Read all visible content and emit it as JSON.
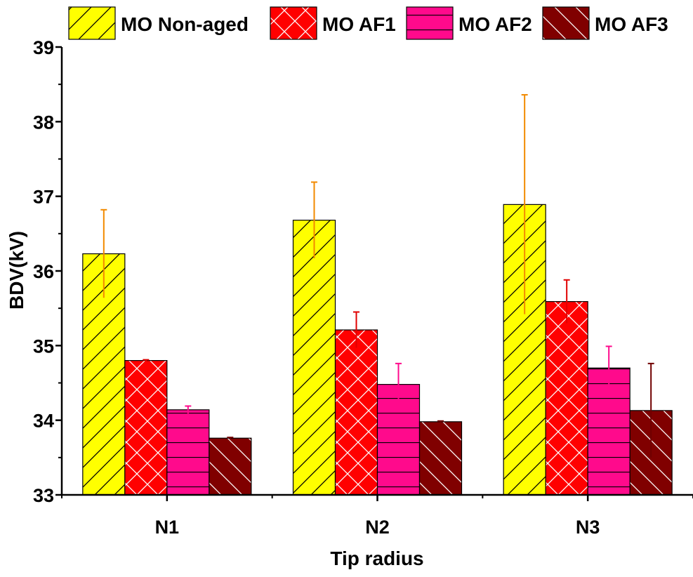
{
  "chart_data": {
    "type": "bar",
    "title": "",
    "xlabel": "Tip radius",
    "ylabel": "BDV(kV)",
    "categories": [
      "N1",
      "N2",
      "N3"
    ],
    "ylim": [
      33,
      39
    ],
    "yticks": [
      33,
      34,
      35,
      36,
      37,
      38,
      39
    ],
    "grid": false,
    "legend_position": "top",
    "series": [
      {
        "name": "MO Non-aged",
        "values": [
          36.23,
          36.68,
          36.89
        ],
        "errors": [
          0.59,
          0.51,
          1.47
        ],
        "color": "#ffff00",
        "error_color": "#f28a00",
        "pattern": "diag-fwd"
      },
      {
        "name": "MO AF1",
        "values": [
          34.8,
          35.21,
          35.59
        ],
        "errors": [
          0.01,
          0.24,
          0.29
        ],
        "color": "#ff0000",
        "error_color": "#e00000",
        "pattern": "crosshatch"
      },
      {
        "name": "MO AF2",
        "values": [
          34.14,
          34.48,
          34.7
        ],
        "errors": [
          0.05,
          0.28,
          0.29
        ],
        "color": "#ff0a8c",
        "error_color": "#ff0a8c",
        "pattern": "horizontal"
      },
      {
        "name": "MO AF3",
        "values": [
          33.76,
          33.98,
          34.13
        ],
        "errors": [
          0.01,
          0.01,
          0.63
        ],
        "color": "#800000",
        "error_color": "#700000",
        "pattern": "diag-back"
      }
    ]
  }
}
